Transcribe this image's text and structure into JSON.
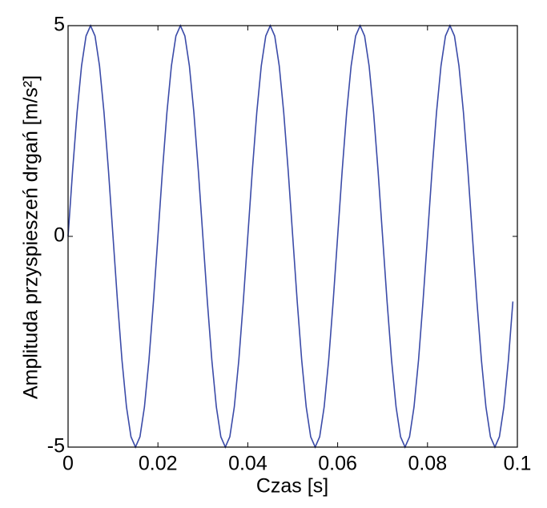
{
  "chart_data": {
    "type": "line",
    "xlabel": "Czas [s]",
    "ylabel": "Amplituda przyspieszeń drgań [m/s²]",
    "x": [
      0,
      0.001,
      0.002,
      0.003,
      0.004,
      0.005,
      0.006,
      0.007,
      0.008,
      0.009,
      0.01,
      0.011,
      0.012,
      0.013,
      0.014,
      0.015,
      0.016,
      0.017,
      0.018,
      0.019,
      0.02,
      0.021,
      0.022,
      0.023,
      0.024,
      0.025,
      0.026,
      0.027,
      0.028,
      0.029,
      0.03,
      0.031,
      0.032,
      0.033,
      0.034,
      0.035,
      0.036,
      0.037,
      0.038,
      0.039,
      0.04,
      0.041,
      0.042,
      0.043,
      0.044,
      0.045,
      0.046,
      0.047,
      0.048,
      0.049,
      0.05,
      0.051,
      0.052,
      0.053,
      0.054,
      0.055,
      0.056,
      0.057,
      0.058,
      0.059,
      0.06,
      0.061,
      0.062,
      0.063,
      0.064,
      0.065,
      0.066,
      0.067,
      0.068,
      0.069,
      0.07,
      0.071,
      0.072,
      0.073,
      0.074,
      0.075,
      0.076,
      0.077,
      0.078,
      0.079,
      0.08,
      0.081,
      0.082,
      0.083,
      0.084,
      0.085,
      0.086,
      0.087,
      0.088,
      0.089,
      0.09,
      0.091,
      0.092,
      0.093,
      0.094,
      0.095,
      0.096,
      0.097,
      0.098,
      0.099
    ],
    "series": [
      {
        "color": "#3b4ba8",
        "values": [
          0,
          1.545,
          2.939,
          4.045,
          4.755,
          5,
          4.755,
          4.045,
          2.939,
          1.545,
          0,
          -1.545,
          -2.939,
          -4.045,
          -4.755,
          -5,
          -4.755,
          -4.045,
          -2.939,
          -1.545,
          0,
          1.545,
          2.939,
          4.045,
          4.755,
          5,
          4.755,
          4.045,
          2.939,
          1.545,
          0,
          -1.545,
          -2.939,
          -4.045,
          -4.755,
          -5,
          -4.755,
          -4.045,
          -2.939,
          -1.545,
          0,
          1.545,
          2.939,
          4.045,
          4.755,
          5,
          4.755,
          4.045,
          2.939,
          1.545,
          0,
          -1.545,
          -2.939,
          -4.045,
          -4.755,
          -5,
          -4.755,
          -4.045,
          -2.939,
          -1.545,
          0,
          1.545,
          2.939,
          4.045,
          4.755,
          5,
          4.755,
          4.045,
          2.939,
          1.545,
          0,
          -1.545,
          -2.939,
          -4.045,
          -4.755,
          -5,
          -4.755,
          -4.045,
          -2.939,
          -1.545,
          0,
          1.545,
          2.939,
          4.045,
          4.755,
          5,
          4.755,
          4.045,
          2.939,
          1.545,
          0,
          -1.545,
          -2.939,
          -4.045,
          -4.755,
          -5,
          -4.755,
          -4.045,
          -2.939,
          -1.545
        ]
      }
    ],
    "xlim": [
      0,
      0.1
    ],
    "xticks": [
      0,
      0.02,
      0.04,
      0.06,
      0.08,
      0.1
    ],
    "ylim": [
      -5,
      5
    ],
    "yticks": [
      -5,
      0,
      5
    ]
  }
}
